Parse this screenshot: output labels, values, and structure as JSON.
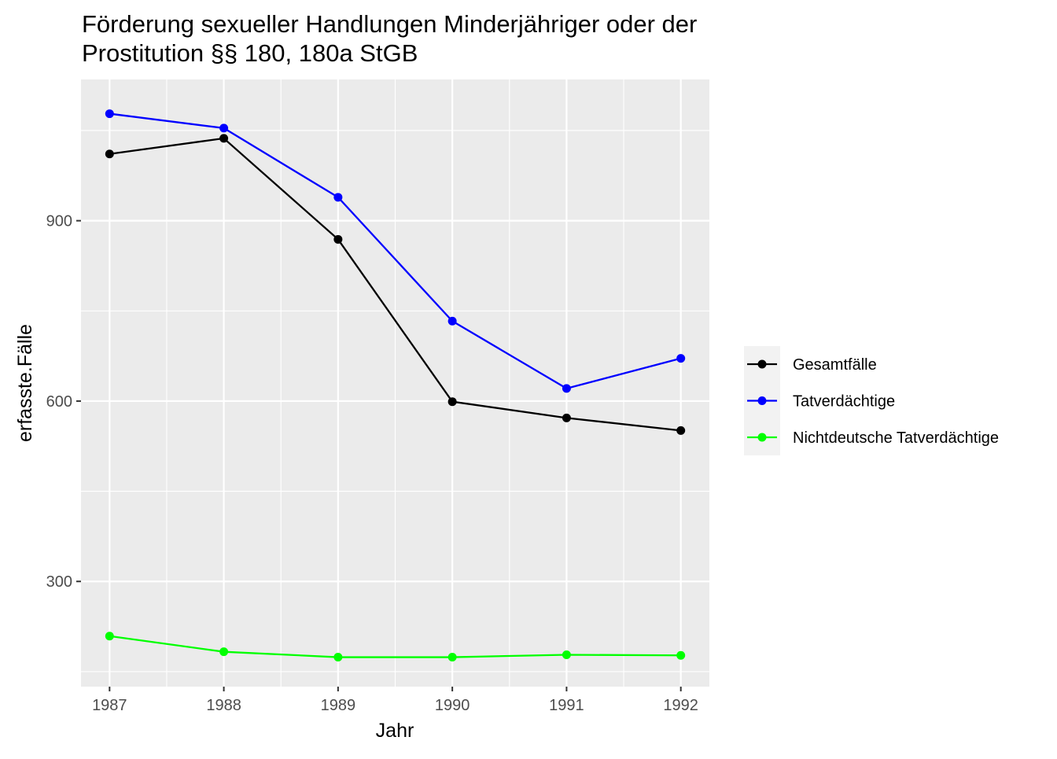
{
  "chart_data": {
    "type": "line",
    "title_lines": [
      "Förderung sexueller Handlungen Minderjähriger oder der",
      "Prostitution §§ 180, 180a StGB"
    ],
    "xlabel": "Jahr",
    "ylabel": "erfasste.Fälle",
    "x": [
      1987,
      1988,
      1989,
      1990,
      1991,
      1992
    ],
    "x_ticks": [
      "1987",
      "1988",
      "1989",
      "1990",
      "1991",
      "1992"
    ],
    "y_ticks": [
      "300",
      "600",
      "900"
    ],
    "ylim": [
      125,
      1135
    ],
    "grid": true,
    "legend_position": "right",
    "series": [
      {
        "name": "Gesamtfälle",
        "color": "#000000",
        "values": [
          1011,
          1037,
          869,
          599,
          572,
          551
        ]
      },
      {
        "name": "Tatverdächtige",
        "color": "#0000ff",
        "values": [
          1078,
          1054,
          939,
          733,
          621,
          671
        ]
      },
      {
        "name": "Nichtdeutsche Tatverdächtige",
        "color": "#00ff00",
        "values": [
          209,
          183,
          174,
          174,
          178,
          177
        ]
      }
    ]
  }
}
